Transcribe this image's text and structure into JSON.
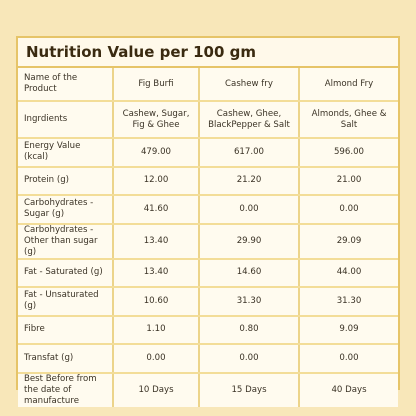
{
  "header": {
    "title": "Nutrition Value per 100 gm"
  },
  "table": {
    "columns": [
      "Name of the Product",
      "Fig Burfi",
      "Cashew fry",
      "Almond Fry"
    ],
    "rows": [
      [
        "Ingrdients",
        "Cashew, Sugar, Fig & Ghee",
        "Cashew, Ghee, BlackPepper & Salt",
        "Almonds, Ghee & Salt"
      ],
      [
        "Energy Value (kcal)",
        "479.00",
        "617.00",
        "596.00"
      ],
      [
        "Protein (g)",
        "12.00",
        "21.20",
        "21.00"
      ],
      [
        "Carbohydrates - Sugar (g)",
        "41.60",
        "0.00",
        "0.00"
      ],
      [
        "Carbohydrates - Other than sugar (g)",
        "13.40",
        "29.90",
        "29.09"
      ],
      [
        "Fat - Saturated (g)",
        "13.40",
        "14.60",
        "44.00"
      ],
      [
        "Fat - Unsaturated (g)",
        "10.60",
        "31.30",
        "31.30"
      ],
      [
        "Fibre",
        "1.10",
        "0.80",
        "9.09"
      ],
      [
        "Transfat (g)",
        "0.00",
        "0.00",
        "0.00"
      ],
      [
        "Best Before from the date of manufacture",
        "10 Days",
        "15 Days",
        "40 Days"
      ]
    ]
  }
}
